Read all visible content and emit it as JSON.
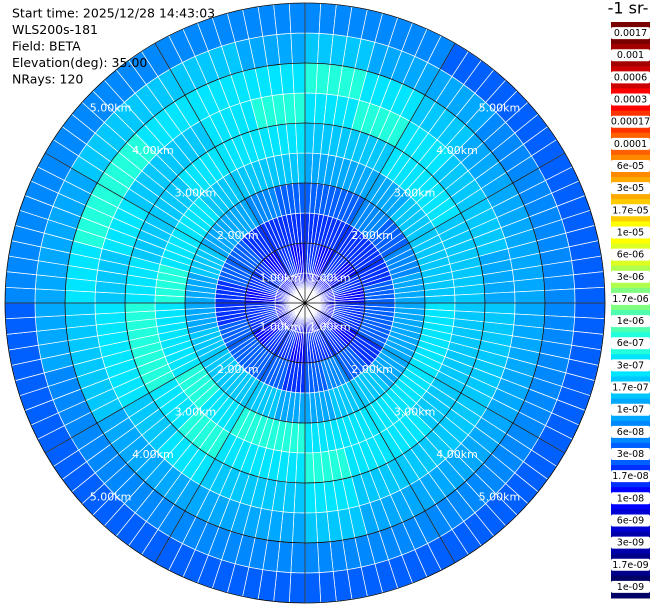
{
  "chart_data": {
    "type": "polar_heatmap",
    "info": [
      "Start time: 2025/12/28 14:43:03",
      "WLS200s-181",
      "Field: BETA",
      "Elevation(deg): 35.00",
      "NRays: 120"
    ],
    "colorbar_title": "-1 sr-",
    "rlim": [
      0,
      5
    ],
    "rticks": [
      {
        "value": 1,
        "label": "1.00km"
      },
      {
        "value": 2,
        "label": "2.00km"
      },
      {
        "value": 3,
        "label": "3.00km"
      },
      {
        "value": 4,
        "label": "4.00km"
      },
      {
        "value": 5,
        "label": "5.00km"
      }
    ],
    "gates": [
      0,
      0.5,
      1,
      1.5,
      2,
      2.5,
      3,
      3.5,
      4,
      4.5,
      5
    ],
    "colorbar": {
      "ticks": [
        0.0017,
        0.001,
        0.0006,
        0.0003,
        0.00017,
        0.0001,
        {
          "value": 6e-05,
          "label": "6e-05"
        },
        {
          "value": 3e-05,
          "label": "3e-05"
        },
        {
          "value": 1.7e-05,
          "label": "1.7e-05"
        },
        {
          "value": 1e-05,
          "label": "1e-05"
        },
        {
          "value": 6e-06,
          "label": "6e-06"
        },
        {
          "value": 3e-06,
          "label": "3e-06"
        },
        {
          "value": 1.7e-06,
          "label": "1.7e-06"
        },
        {
          "value": 1e-06,
          "label": "1e-06"
        },
        {
          "value": 6e-07,
          "label": "6e-07"
        },
        {
          "value": 3e-07,
          "label": "3e-07"
        },
        {
          "value": 1.7e-07,
          "label": "1.7e-07"
        },
        {
          "value": 1e-07,
          "label": "1e-07"
        },
        {
          "value": 6e-08,
          "label": "6e-08"
        },
        {
          "value": 3e-08,
          "label": "3e-08"
        },
        {
          "value": 1.7e-08,
          "label": "1.7e-08"
        },
        {
          "value": 1e-08,
          "label": "1e-08"
        },
        {
          "value": 6e-09,
          "label": "6e-09"
        },
        {
          "value": 3e-09,
          "label": "3e-09"
        },
        {
          "value": 1.7e-09,
          "label": "1.7e-09"
        },
        {
          "value": 1e-09,
          "label": "1e-09"
        }
      ],
      "colors": [
        "#7a0000",
        "#a30000",
        "#cc0000",
        "#ff0000",
        "#ff3300",
        "#ff6000",
        "#ff8a00",
        "#ffaa00",
        "#ffcc00",
        "#ffff00",
        "#ddff22",
        "#b0ff4f",
        "#80ff80",
        "#4fffb0",
        "#22ffdd",
        "#00e5ff",
        "#00c8ff",
        "#00a8ff",
        "#0088ff",
        "#0060ff",
        "#0030ff",
        "#0000ff",
        "#0000d4",
        "#0000aa",
        "#000088",
        "#000066"
      ]
    },
    "values": [
      [
        1e-08,
        1.7e-08,
        1.7e-08,
        3e-08,
        1e-07,
        1.7e-07,
        3e-07,
        6e-07,
        1.7e-07,
        6e-08
      ],
      [
        1e-08,
        1e-08,
        1.7e-08,
        3e-08,
        1e-07,
        1.7e-07,
        6e-07,
        3e-07,
        1e-07,
        6e-08
      ],
      [
        1e-08,
        1.7e-08,
        1.7e-08,
        6e-08,
        1e-07,
        3e-07,
        3e-07,
        1.7e-07,
        1e-07,
        3e-08
      ],
      [
        1e-08,
        1e-08,
        1.7e-08,
        3e-08,
        1.7e-07,
        3e-07,
        1.7e-07,
        1e-07,
        6e-08,
        3e-08
      ],
      [
        1e-08,
        1.7e-08,
        1.7e-08,
        6e-08,
        1.7e-07,
        1.7e-07,
        1.7e-07,
        1e-07,
        6e-08,
        3e-08
      ],
      [
        1e-08,
        1e-08,
        3e-08,
        1e-07,
        1.7e-07,
        1.7e-07,
        1e-07,
        1e-07,
        6e-08,
        3e-08
      ],
      [
        1e-08,
        1.7e-08,
        3e-08,
        1e-07,
        3e-07,
        1.7e-07,
        1.7e-07,
        1e-07,
        6e-08,
        3e-08
      ],
      [
        1e-08,
        1.7e-08,
        3e-08,
        1e-07,
        3e-07,
        1.7e-07,
        1.7e-07,
        1e-07,
        6e-08,
        3e-08
      ],
      [
        1e-08,
        1e-08,
        1.7e-08,
        1e-07,
        3e-07,
        1.7e-07,
        1.7e-07,
        1e-07,
        6e-08,
        3e-08
      ],
      [
        1e-08,
        1.7e-08,
        3e-08,
        1.7e-07,
        3e-07,
        3e-07,
        1.7e-07,
        1e-07,
        6e-08,
        3e-08
      ],
      [
        1e-08,
        1.7e-08,
        6e-08,
        1.7e-07,
        3e-07,
        3e-07,
        1.7e-07,
        1e-07,
        6e-08,
        3e-08
      ],
      [
        1e-08,
        1.7e-08,
        3e-08,
        1e-07,
        3e-07,
        6e-07,
        3e-07,
        1.7e-07,
        6e-08,
        3e-08
      ],
      [
        1e-08,
        1e-08,
        1.7e-08,
        1e-07,
        6e-07,
        3e-07,
        1.7e-07,
        1e-07,
        6e-08,
        3e-08
      ],
      [
        1e-08,
        1.7e-08,
        3e-08,
        1.7e-07,
        6e-07,
        3e-07,
        1.7e-07,
        1e-07,
        6e-08,
        3e-08
      ],
      [
        1e-08,
        1.7e-08,
        3e-08,
        1.7e-07,
        3e-07,
        6e-07,
        3e-07,
        1e-07,
        6e-08,
        3e-08
      ],
      [
        1e-08,
        1e-08,
        3e-08,
        1.7e-07,
        6e-07,
        3e-07,
        1.7e-07,
        1e-07,
        6e-08,
        3e-08
      ],
      [
        1e-08,
        1.7e-08,
        3e-08,
        1.7e-07,
        3e-07,
        6e-07,
        3e-07,
        1.7e-07,
        6e-08,
        3e-08
      ],
      [
        1e-08,
        1.7e-08,
        1.7e-08,
        1e-07,
        3e-07,
        6e-07,
        3e-07,
        1.7e-07,
        1e-07,
        3e-08
      ],
      [
        1e-08,
        1e-08,
        1.7e-08,
        1e-07,
        6e-07,
        3e-07,
        1.7e-07,
        3e-07,
        1e-07,
        6e-08
      ],
      [
        1e-08,
        1.7e-08,
        3e-08,
        1.7e-07,
        3e-07,
        1.7e-07,
        3e-07,
        6e-07,
        1e-07,
        6e-08
      ],
      [
        1e-08,
        1.7e-08,
        3e-08,
        1e-07,
        3e-07,
        1.7e-07,
        1.7e-07,
        6e-07,
        1.7e-07,
        6e-08
      ],
      [
        1e-08,
        1e-08,
        1.7e-08,
        1e-07,
        1.7e-07,
        3e-07,
        1.7e-07,
        3e-07,
        1.7e-07,
        6e-08
      ],
      [
        1e-08,
        1.7e-08,
        1.7e-08,
        6e-08,
        1.7e-07,
        3e-07,
        3e-07,
        3e-07,
        1.7e-07,
        6e-08
      ],
      [
        1e-08,
        1e-08,
        1.7e-08,
        3e-08,
        1.7e-07,
        3e-07,
        6e-07,
        3e-07,
        1e-07,
        6e-08
      ]
    ]
  }
}
